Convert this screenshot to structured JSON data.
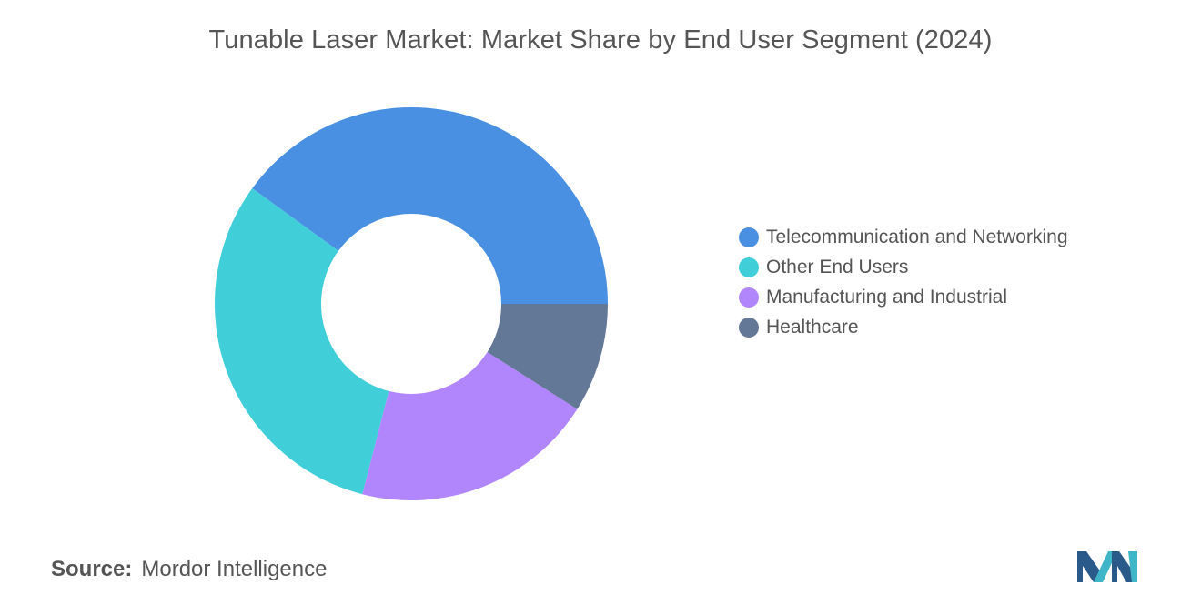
{
  "title": "Tunable Laser Market: Market Share by End User Segment (2024)",
  "source": {
    "label": "Source:",
    "value": "Mordor Intelligence"
  },
  "chart_data": {
    "type": "pie",
    "donut": true,
    "title": "Tunable Laser Market: Market Share by End User Segment (2024)",
    "legend_position": "right",
    "categories": [
      "Telecommunication and Networking",
      "Other End Users",
      "Manufacturing and Industrial",
      "Healthcare"
    ],
    "values": [
      40,
      31,
      20,
      9
    ],
    "colors": [
      "#4a90e2",
      "#40cfd9",
      "#b185fb",
      "#637797"
    ]
  }
}
